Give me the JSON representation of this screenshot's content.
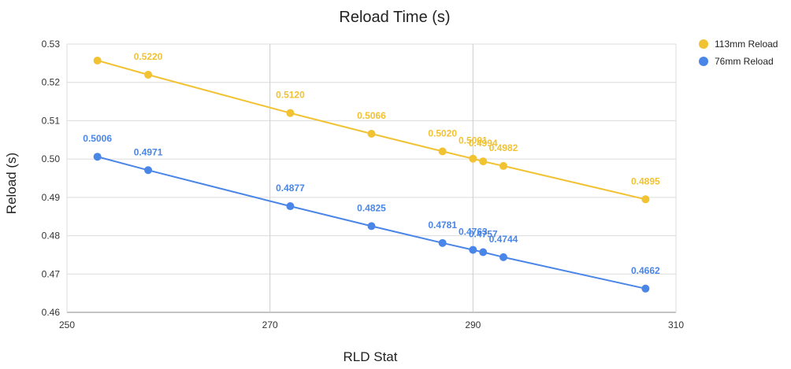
{
  "chart_data": {
    "type": "line",
    "title": "Reload Time (s)",
    "xlabel": "RLD Stat",
    "ylabel": "Reload (s)",
    "xlim": [
      250,
      310
    ],
    "ylim": [
      0.46,
      0.53
    ],
    "x_ticks": [
      "250",
      "270",
      "290",
      "310"
    ],
    "y_ticks": [
      "0.46",
      "0.47",
      "0.48",
      "0.49",
      "0.50",
      "0.51",
      "0.52",
      "0.53"
    ],
    "x_major_gridlines": [
      270,
      290
    ],
    "grid": true,
    "legend_position": "top-right",
    "series": [
      {
        "name": "113mm Reload",
        "color": "#f1c232",
        "x": [
          253,
          258,
          272,
          280,
          287,
          290,
          291,
          293,
          307
        ],
        "values": [
          0.5257,
          0.522,
          0.512,
          0.5066,
          0.502,
          0.5001,
          0.4994,
          0.4982,
          0.4895
        ],
        "labels": [
          "",
          "0.5220",
          "0.5120",
          "0.5066",
          "0.5020",
          "0.5001",
          "0.4994",
          "0.4982",
          "0.4895"
        ]
      },
      {
        "name": "76mm Reload",
        "color": "#4a86e8",
        "x": [
          253,
          258,
          272,
          280,
          287,
          290,
          291,
          293,
          307
        ],
        "values": [
          0.5006,
          0.4971,
          0.4877,
          0.4825,
          0.4781,
          0.4763,
          0.4757,
          0.4744,
          0.4662
        ],
        "labels": [
          "0.5006",
          "0.4971",
          "0.4877",
          "0.4825",
          "0.4781",
          "0.4763",
          "0.4757",
          "0.4744",
          "0.4662"
        ]
      }
    ]
  }
}
